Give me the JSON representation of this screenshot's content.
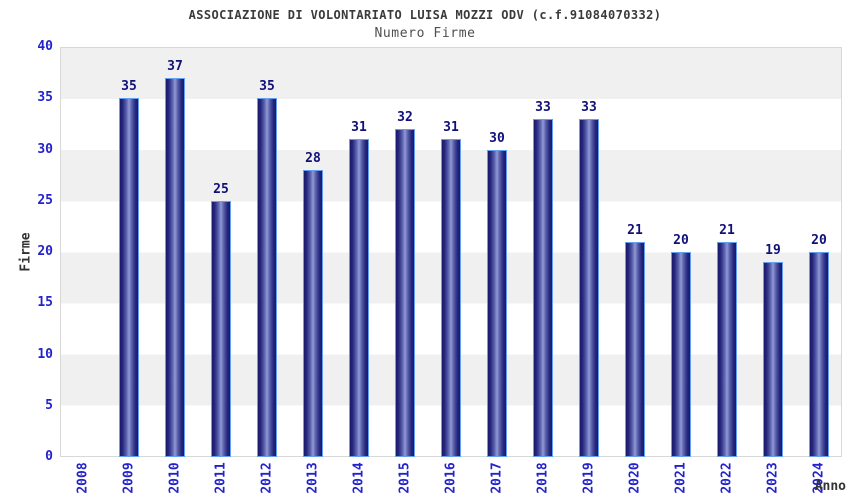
{
  "header": {
    "title": "ASSOCIAZIONE DI VOLONTARIATO LUISA MOZZI ODV (c.f.91084070332)",
    "subtitle": "Numero Firme"
  },
  "chart_data": {
    "type": "bar",
    "title": "ASSOCIAZIONE DI VOLONTARIATO LUISA MOZZI ODV (c.f.91084070332)",
    "subtitle": "Numero Firme",
    "xlabel": "Anno",
    "ylabel": "Firme",
    "categories": [
      "2008",
      "2009",
      "2010",
      "2011",
      "2012",
      "2013",
      "2014",
      "2015",
      "2016",
      "2017",
      "2018",
      "2019",
      "2020",
      "2021",
      "2022",
      "2023",
      "2024"
    ],
    "values": [
      null,
      35,
      37,
      25,
      35,
      28,
      31,
      32,
      31,
      30,
      33,
      33,
      21,
      20,
      21,
      19,
      20
    ],
    "ylim": [
      0,
      40
    ],
    "yticks": [
      0,
      5,
      10,
      15,
      20,
      25,
      30,
      35,
      40
    ],
    "grid": "alternating-horizontal-bands",
    "legend": "none",
    "colors": {
      "tick_label": "#2323cd",
      "value_label": "#101078",
      "title_text": "#3a3a3a",
      "subtitle_text": "#4f4f4f",
      "axis_title_text": "#333333",
      "bar_border": "#64a0f2",
      "bar_dark": "#1a1a6b",
      "bar_light": "#9199d6",
      "band_gray": "#f0f0f0",
      "band_white": "#ffffff",
      "plot_border": "#d8d8d8",
      "background": "#ffffff"
    }
  }
}
